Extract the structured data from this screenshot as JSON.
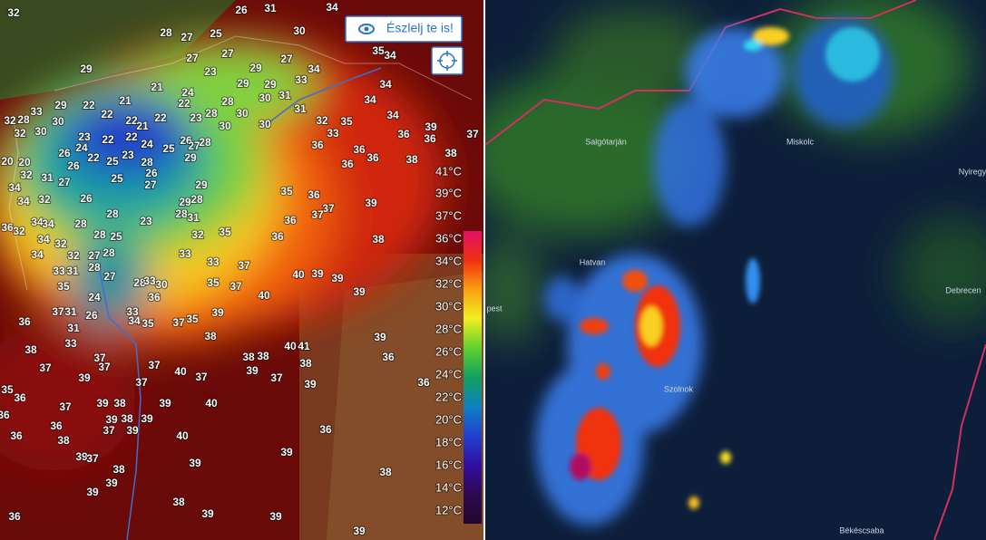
{
  "toolbar": {
    "report_button": "Észlelj te is!"
  },
  "temperature_map": {
    "stations": [
      32,
      26,
      31,
      34,
      28,
      27,
      25,
      30,
      29,
      27,
      27,
      27,
      35,
      34,
      23,
      29,
      34,
      33,
      21,
      29,
      29,
      34,
      24,
      22,
      21,
      22,
      28,
      30,
      31,
      34,
      33,
      29,
      22,
      22,
      21,
      22,
      23,
      28,
      30,
      31,
      34,
      32,
      28,
      30,
      30,
      32,
      22,
      22,
      23,
      24,
      26,
      27,
      28,
      30,
      30,
      32,
      35,
      33,
      39,
      36,
      36,
      37,
      24,
      26,
      25,
      23,
      22,
      25,
      29,
      36,
      36,
      38,
      20,
      20,
      26,
      28,
      36,
      36,
      38,
      32,
      31,
      27,
      26,
      25,
      27,
      29,
      34,
      34,
      26,
      32,
      29,
      28,
      35,
      36,
      39,
      37,
      37,
      28,
      23,
      28,
      31,
      36,
      34,
      34,
      28,
      36,
      32,
      25,
      28,
      32,
      35,
      34,
      32,
      36,
      38,
      34,
      32,
      28,
      27,
      33,
      33,
      31,
      28,
      33,
      37,
      40,
      39,
      39,
      28,
      33,
      30,
      35,
      27,
      35,
      37,
      40,
      39,
      36,
      24,
      37,
      31,
      26,
      33,
      34,
      35,
      37,
      35,
      39,
      36,
      31,
      38,
      33,
      40,
      41,
      39,
      38,
      38,
      38,
      37,
      36,
      38,
      37,
      37,
      37,
      40,
      37,
      39,
      37,
      36,
      39,
      37,
      39,
      35,
      36,
      37,
      39,
      38,
      39,
      40,
      39,
      38,
      39,
      36,
      36,
      37,
      39,
      36,
      36,
      38,
      40,
      39,
      37,
      39,
      38,
      39,
      38,
      39,
      39,
      38,
      39,
      39,
      36,
      39
    ],
    "legend": [
      "41°C",
      "39°C",
      "37°C",
      "36°C",
      "34°C",
      "32°C",
      "30°C",
      "28°C",
      "26°C",
      "24°C",
      "22°C",
      "20°C",
      "18°C",
      "16°C",
      "14°C",
      "12°C"
    ]
  },
  "radar_map": {
    "places": [
      "Salgótarján",
      "Miskolc",
      "Nyiregy",
      "Hatvan",
      "Debrecen",
      "pest",
      "Szolnok",
      "Békéscsaba"
    ]
  }
}
